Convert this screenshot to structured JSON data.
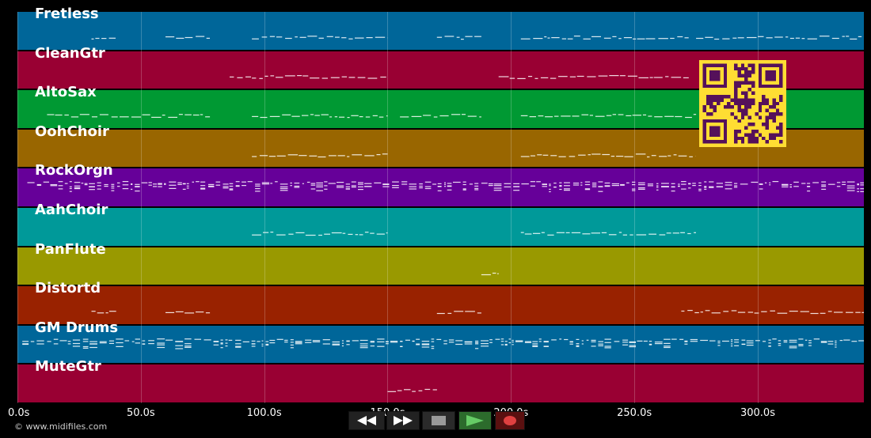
{
  "tracks": [
    {
      "name": "Fretless",
      "color": "#006699"
    },
    {
      "name": "CleanGtr",
      "color": "#990033"
    },
    {
      "name": "AltoSax",
      "color": "#009933"
    },
    {
      "name": "OohChoir",
      "color": "#996600"
    },
    {
      "name": "RockOrgn",
      "color": "#660099"
    },
    {
      "name": "AahChoir",
      "color": "#009999"
    },
    {
      "name": "PanFlute",
      "color": "#999900"
    },
    {
      "name": "Distortd",
      "color": "#992200"
    },
    {
      "name": "GM Drums",
      "color": "#006699"
    },
    {
      "name": "MuteGtr",
      "color": "#990033"
    }
  ],
  "timeline": {
    "ticks": [
      "0.0s",
      "50.0s",
      "100.0s",
      "150.0s",
      "200.0s",
      "250.0s",
      "300.0s"
    ],
    "tick_seconds": [
      0,
      50,
      100,
      150,
      200,
      250,
      300
    ],
    "max_seconds": 343
  },
  "transport": {
    "rewind_icon": "rewind-icon",
    "forward_icon": "fast-forward-icon",
    "stop_icon": "stop-icon",
    "play_icon": "play-icon",
    "record_icon": "record-icon"
  },
  "copyright": "© www.midifiles.com",
  "qr_code": "qr-code"
}
